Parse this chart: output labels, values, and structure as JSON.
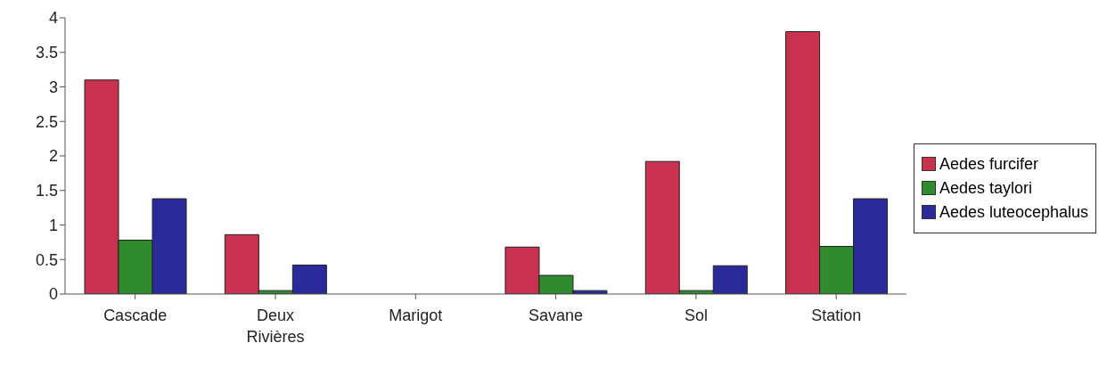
{
  "chart_data": {
    "type": "bar",
    "categories": [
      "Cascade",
      "Deux Rivières",
      "Marigot",
      "Savane",
      "Sol",
      "Station"
    ],
    "series": [
      {
        "name": "Aedes furcifer",
        "color": "#c8324e",
        "values": [
          3.1,
          0.86,
          0,
          0.68,
          1.92,
          3.8
        ]
      },
      {
        "name": "Aedes taylori",
        "color": "#2e8b2e",
        "values": [
          0.78,
          0.05,
          0,
          0.27,
          0.05,
          0.69
        ]
      },
      {
        "name": "Aedes luteocephalus",
        "color": "#2a2a9a",
        "values": [
          1.38,
          0.42,
          0,
          0.05,
          0.41,
          1.38
        ]
      }
    ],
    "ylim": [
      0,
      4
    ],
    "yticks": [
      0,
      0.5,
      1,
      1.5,
      2,
      2.5,
      3,
      3.5,
      4
    ],
    "grid": false,
    "legend": "right"
  }
}
